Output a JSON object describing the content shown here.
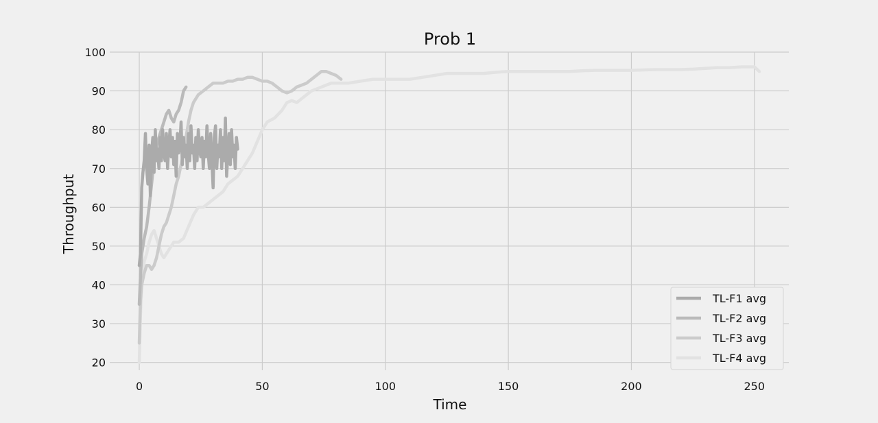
{
  "chart_data": {
    "type": "line",
    "title": "Prob 1",
    "xlabel": "Time",
    "ylabel": "Throughput",
    "xlim": [
      -12,
      264
    ],
    "ylim": [
      18,
      100
    ],
    "xticks": [
      0,
      50,
      100,
      150,
      200,
      250
    ],
    "yticks": [
      20,
      30,
      40,
      50,
      60,
      70,
      80,
      90,
      100
    ],
    "grid": true,
    "legend_position": "lower-right",
    "series": [
      {
        "name": "TL-F4 avg",
        "color": "#e2e2e2",
        "x": [
          0,
          0.5,
          1,
          2,
          3,
          4,
          5,
          6,
          7,
          8,
          9,
          10,
          12,
          14,
          16,
          18,
          20,
          22,
          24,
          26,
          28,
          30,
          32,
          34,
          36,
          38,
          40,
          42,
          44,
          46,
          48,
          50,
          52,
          55,
          58,
          60,
          62,
          64,
          66,
          68,
          70,
          72,
          74,
          76,
          78,
          80,
          82,
          85,
          90,
          95,
          100,
          105,
          110,
          115,
          120,
          125,
          130,
          135,
          140,
          145,
          150,
          155,
          160,
          165,
          170,
          175,
          180,
          185,
          190,
          195,
          200,
          205,
          210,
          215,
          220,
          225,
          230,
          235,
          240,
          245,
          250,
          252
        ],
        "values": [
          20,
          32,
          40,
          46,
          48,
          51,
          53,
          54,
          52,
          50,
          48,
          47,
          49,
          51,
          51,
          52,
          55,
          58,
          60,
          60,
          61,
          62,
          63,
          64,
          66,
          67,
          68,
          70,
          72,
          74,
          77,
          80,
          82,
          83,
          85,
          87,
          87.5,
          87,
          88,
          89,
          90,
          90.5,
          91,
          91.5,
          92,
          92,
          92,
          92,
          92.5,
          93,
          93,
          93,
          93,
          93.5,
          94,
          94.5,
          94.5,
          94.5,
          94.5,
          94.8,
          95,
          95,
          95,
          95,
          95,
          95,
          95.2,
          95.3,
          95.3,
          95.3,
          95.3,
          95.4,
          95.5,
          95.5,
          95.5,
          95.6,
          95.8,
          96,
          96,
          96.2,
          96.2,
          95
        ]
      },
      {
        "name": "TL-F3 avg",
        "color": "#cbcbcb",
        "x": [
          0,
          0.5,
          1,
          2,
          3,
          4,
          5,
          6,
          7,
          8,
          9,
          10,
          11,
          12,
          13,
          14,
          15,
          16,
          17,
          18,
          19,
          20,
          21,
          22,
          23,
          24,
          26,
          28,
          30,
          32,
          34,
          36,
          38,
          40,
          42,
          44,
          46,
          48,
          50,
          52,
          54,
          56,
          58,
          60,
          62,
          64,
          66,
          68,
          70,
          72,
          74,
          76,
          78,
          80,
          82
        ],
        "values": [
          25,
          36,
          40,
          43,
          45,
          45,
          44,
          45,
          47,
          50,
          53,
          55,
          56,
          58,
          60,
          63,
          66,
          68,
          71,
          74,
          78,
          82,
          85,
          87,
          88,
          89,
          90,
          91,
          92,
          92,
          92,
          92.5,
          92.5,
          93,
          93,
          93.5,
          93.5,
          93,
          92.5,
          92.5,
          92,
          91,
          90,
          89.5,
          90,
          91,
          91.5,
          92,
          93,
          94,
          95,
          95,
          94.5,
          94,
          93
        ]
      },
      {
        "name": "TL-F2 avg",
        "color": "#bababa",
        "x": [
          0,
          0.5,
          1,
          1.5,
          2,
          3,
          4,
          5,
          6,
          7,
          8,
          9,
          10,
          11,
          12,
          13,
          14,
          15,
          16,
          17,
          18,
          19
        ],
        "values": [
          35,
          42,
          48,
          50,
          52,
          55,
          60,
          66,
          72,
          76,
          78,
          80,
          82,
          84,
          85,
          83,
          82,
          84,
          85,
          87,
          90,
          91
        ]
      },
      {
        "name": "TL-F1 avg",
        "color": "#ababab",
        "x": [
          0,
          0.5,
          1,
          1.5,
          2,
          2.5,
          3,
          3.5,
          4,
          4.5,
          5,
          5.5,
          6,
          6.5,
          7,
          7.5,
          8,
          8.5,
          9,
          9.5,
          10,
          10.5,
          11,
          11.5,
          12,
          12.5,
          13,
          13.5,
          14,
          14.5,
          15,
          15.5,
          16,
          16.5,
          17,
          17.5,
          18,
          18.5,
          19,
          19.5,
          20,
          20.5,
          21,
          21.5,
          22,
          22.5,
          23,
          23.5,
          24,
          24.5,
          25,
          25.5,
          26,
          26.5,
          27,
          27.5,
          28,
          28.5,
          29,
          29.5,
          30,
          30.5,
          31,
          31.5,
          32,
          32.5,
          33,
          33.5,
          34,
          34.5,
          35,
          35.5,
          36,
          36.5,
          37,
          37.5,
          38,
          38.5,
          39,
          39.5,
          40
        ],
        "values": [
          45,
          48,
          65,
          69,
          72,
          79,
          70,
          66,
          76,
          63,
          74,
          78,
          69,
          80,
          72,
          75,
          70,
          78,
          72,
          80,
          74,
          72,
          79,
          70,
          76,
          80,
          73,
          78,
          71,
          77,
          68,
          79,
          74,
          76,
          82,
          71,
          78,
          73,
          76,
          70,
          79,
          72,
          81,
          74,
          76,
          70,
          78,
          72,
          80,
          75,
          73,
          78,
          70,
          77,
          73,
          81,
          74,
          70,
          79,
          72,
          65,
          78,
          81,
          70,
          76,
          73,
          80,
          70,
          78,
          72,
          83,
          68,
          74,
          79,
          71,
          80,
          73,
          76,
          70,
          78,
          75
        ]
      }
    ]
  }
}
